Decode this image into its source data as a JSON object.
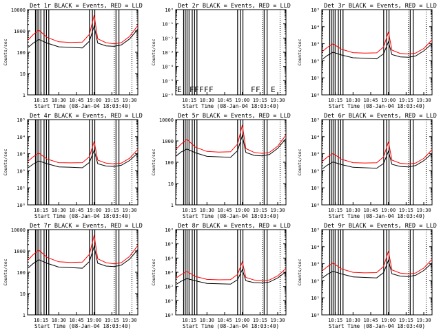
{
  "start_time_label": "Start Time (08-Jan-04 18:03:40)",
  "xticks": [
    "18:15",
    "18:30",
    "18:45",
    "19:00",
    "19:15",
    "19:30"
  ],
  "colors": {
    "events": "#000000",
    "lld": "#ff0000"
  },
  "chart_data": [
    {
      "type": "line",
      "title": "Det 1r BLACK = Events, RED = LLD",
      "ylabel": "Counts/sec",
      "yscale": "log",
      "ylim": [
        1,
        10000
      ],
      "ytick_labels": [
        "1",
        "10",
        "100",
        "1000",
        "10000"
      ],
      "x": [
        "18:04",
        "18:08",
        "18:13",
        "18:20",
        "18:30",
        "18:40",
        "18:50",
        "18:56",
        "19:00",
        "19:03",
        "19:10",
        "19:17",
        "19:23",
        "19:30",
        "19:38"
      ],
      "series": [
        {
          "name": "Events",
          "color": "#000000",
          "values": [
            170,
            260,
            400,
            270,
            180,
            170,
            160,
            330,
            1700,
            270,
            200,
            190,
            220,
            420,
            1200
          ]
        },
        {
          "name": "LLD",
          "color": "#ff0000",
          "values": [
            380,
            650,
            1100,
            500,
            310,
            290,
            300,
            700,
            5500,
            430,
            280,
            250,
            280,
            550,
            1800
          ]
        }
      ],
      "flags": []
    },
    {
      "type": "line",
      "title": "Det 2r BLACK = Events, RED = LLD",
      "ylabel": "Counts/sec",
      "yscale": "log",
      "ylim": [
        1e-06,
        1
      ],
      "ytick_labels": [
        "10⁻⁶",
        "10⁻⁵",
        "10⁻⁴",
        "10⁻³",
        "10⁻²",
        "10⁻¹",
        "10⁰"
      ],
      "x": [],
      "series": [],
      "flags": [
        "E",
        "F",
        "F",
        "F",
        "F",
        "F",
        "F",
        "F",
        "E"
      ]
    },
    {
      "type": "line",
      "title": "Det 3r BLACK = Events, RED = LLD",
      "ylabel": "Counts/sec",
      "yscale": "log",
      "ylim": [
        1,
        100000
      ],
      "ytick_labels": [
        "10⁰",
        "10¹",
        "10²",
        "10³",
        "10⁴",
        "10⁵"
      ],
      "x": [
        "18:04",
        "18:08",
        "18:13",
        "18:20",
        "18:30",
        "18:40",
        "18:50",
        "18:56",
        "19:00",
        "19:03",
        "19:10",
        "19:17",
        "19:23",
        "19:30",
        "19:38"
      ],
      "series": [
        {
          "name": "Events",
          "color": "#000000",
          "values": [
            120,
            200,
            320,
            220,
            150,
            140,
            130,
            260,
            1300,
            230,
            170,
            160,
            190,
            380,
            1000
          ]
        },
        {
          "name": "LLD",
          "color": "#ff0000",
          "values": [
            350,
            600,
            1000,
            480,
            300,
            280,
            290,
            650,
            5000,
            420,
            270,
            250,
            280,
            520,
            1700
          ]
        }
      ],
      "flags": []
    },
    {
      "type": "line",
      "title": "Det 4r BLACK = Events, RED = LLD",
      "ylabel": "Counts/sec",
      "yscale": "log",
      "ylim": [
        1,
        100000
      ],
      "ytick_labels": [
        "10⁰",
        "10¹",
        "10²",
        "10³",
        "10⁴",
        "10⁵"
      ],
      "x": [
        "18:04",
        "18:08",
        "18:13",
        "18:20",
        "18:30",
        "18:40",
        "18:50",
        "18:56",
        "19:00",
        "19:03",
        "19:10",
        "19:17",
        "19:23",
        "19:30",
        "19:38"
      ],
      "series": [
        {
          "name": "Events",
          "color": "#000000",
          "values": [
            150,
            240,
            380,
            260,
            170,
            160,
            150,
            310,
            1600,
            260,
            190,
            180,
            210,
            400,
            1100
          ]
        },
        {
          "name": "LLD",
          "color": "#ff0000",
          "values": [
            370,
            640,
            1100,
            490,
            300,
            290,
            300,
            680,
            5300,
            420,
            280,
            250,
            280,
            540,
            1800
          ]
        }
      ],
      "flags": []
    },
    {
      "type": "line",
      "title": "Det 5r BLACK = Events, RED = LLD",
      "ylabel": "Counts/sec",
      "yscale": "log",
      "ylim": [
        1,
        10000
      ],
      "ytick_labels": [
        "1",
        "10",
        "100",
        "1000",
        "10000"
      ],
      "x": [
        "18:04",
        "18:08",
        "18:13",
        "18:20",
        "18:30",
        "18:40",
        "18:50",
        "18:56",
        "19:00",
        "19:03",
        "19:10",
        "19:17",
        "19:23",
        "19:30",
        "19:38"
      ],
      "series": [
        {
          "name": "Events",
          "color": "#000000",
          "values": [
            200,
            300,
            420,
            280,
            190,
            180,
            170,
            350,
            1800,
            290,
            210,
            200,
            230,
            450,
            1300
          ]
        },
        {
          "name": "LLD",
          "color": "#ff0000",
          "values": [
            420,
            700,
            1200,
            520,
            320,
            300,
            310,
            720,
            5600,
            440,
            290,
            260,
            290,
            570,
            1900
          ]
        }
      ],
      "flags": []
    },
    {
      "type": "line",
      "title": "Det 6r BLACK = Events, RED = LLD",
      "ylabel": "Counts/sec",
      "yscale": "log",
      "ylim": [
        1,
        100000
      ],
      "ytick_labels": [
        "10⁰",
        "10¹",
        "10²",
        "10³",
        "10⁴",
        "10⁵"
      ],
      "x": [
        "18:04",
        "18:08",
        "18:13",
        "18:20",
        "18:30",
        "18:40",
        "18:50",
        "18:56",
        "19:00",
        "19:03",
        "19:10",
        "19:17",
        "19:23",
        "19:30",
        "19:38"
      ],
      "series": [
        {
          "name": "Events",
          "color": "#000000",
          "values": [
            130,
            210,
            330,
            230,
            160,
            150,
            140,
            270,
            1400,
            240,
            180,
            170,
            200,
            390,
            1050
          ]
        },
        {
          "name": "LLD",
          "color": "#ff0000",
          "values": [
            360,
            620,
            1050,
            480,
            300,
            285,
            295,
            660,
            5100,
            420,
            275,
            250,
            280,
            530,
            1750
          ]
        }
      ],
      "flags": []
    },
    {
      "type": "line",
      "title": "Det 7r BLACK = Events, RED = LLD",
      "ylabel": "Counts/sec",
      "yscale": "log",
      "ylim": [
        1,
        10000
      ],
      "ytick_labels": [
        "1",
        "10",
        "100",
        "1000",
        "10000"
      ],
      "x": [
        "18:04",
        "18:08",
        "18:13",
        "18:20",
        "18:30",
        "18:40",
        "18:50",
        "18:56",
        "19:00",
        "19:03",
        "19:10",
        "19:17",
        "19:23",
        "19:30",
        "19:38"
      ],
      "series": [
        {
          "name": "Events",
          "color": "#000000",
          "values": [
            160,
            250,
            390,
            265,
            175,
            165,
            155,
            320,
            1650,
            265,
            195,
            185,
            215,
            410,
            1150
          ]
        },
        {
          "name": "LLD",
          "color": "#ff0000",
          "values": [
            380,
            650,
            1100,
            500,
            310,
            290,
            300,
            700,
            5400,
            430,
            280,
            250,
            280,
            550,
            1800
          ]
        }
      ],
      "flags": []
    },
    {
      "type": "line",
      "title": "Det 8r BLACK = Events, RED = LLD",
      "ylabel": "Counts/sec",
      "yscale": "log",
      "ylim": [
        1,
        1000000
      ],
      "ytick_labels": [
        "10⁰",
        "10¹",
        "10²",
        "10³",
        "10⁴",
        "10⁵",
        "10⁶"
      ],
      "x": [
        "18:04",
        "18:08",
        "18:13",
        "18:20",
        "18:30",
        "18:40",
        "18:50",
        "18:56",
        "19:00",
        "19:03",
        "19:10",
        "19:17",
        "19:23",
        "19:30",
        "19:38"
      ],
      "series": [
        {
          "name": "Events",
          "color": "#000000",
          "values": [
            140,
            230,
            360,
            250,
            165,
            155,
            145,
            300,
            1550,
            255,
            185,
            175,
            205,
            395,
            1100
          ]
        },
        {
          "name": "LLD",
          "color": "#ff0000",
          "values": [
            400,
            680,
            1150,
            510,
            315,
            295,
            305,
            710,
            5500,
            435,
            285,
            255,
            285,
            560,
            1850
          ]
        }
      ],
      "flags": []
    },
    {
      "type": "line",
      "title": "Det 9r BLACK = Events, RED = LLD",
      "ylabel": "Counts/sec",
      "yscale": "log",
      "ylim": [
        1,
        100000
      ],
      "ytick_labels": [
        "10⁰",
        "10¹",
        "10²",
        "10³",
        "10⁴",
        "10⁵"
      ],
      "x": [
        "18:04",
        "18:08",
        "18:13",
        "18:20",
        "18:30",
        "18:40",
        "18:50",
        "18:56",
        "19:00",
        "19:03",
        "19:10",
        "19:17",
        "19:23",
        "19:30",
        "19:38"
      ],
      "series": [
        {
          "name": "Events",
          "color": "#000000",
          "values": [
            145,
            235,
            365,
            255,
            168,
            158,
            148,
            305,
            1580,
            258,
            188,
            178,
            208,
            398,
            1120
          ]
        },
        {
          "name": "LLD",
          "color": "#ff0000",
          "values": [
            390,
            660,
            1120,
            505,
            312,
            292,
            302,
            705,
            5450,
            432,
            282,
            252,
            282,
            555,
            1820
          ]
        }
      ],
      "flags": []
    }
  ]
}
